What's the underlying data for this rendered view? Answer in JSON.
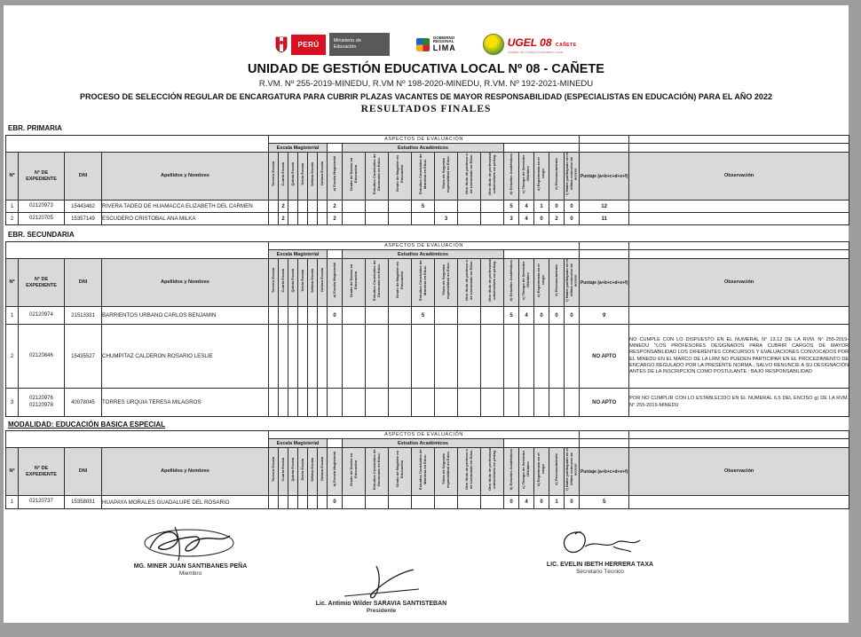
{
  "header": {
    "logos": {
      "minedu": {
        "peru_label": "PERÚ",
        "ministry_label": "Ministerio de Educación"
      },
      "lima": {
        "l1": "GOBIERNO",
        "l2": "REGIONAL",
        "l3": "LIMA"
      },
      "ugel": {
        "title": "UGEL 08",
        "region": "CAÑETE",
        "subtitle": "Unidad de Gestión Educativa Local"
      }
    },
    "title": "UNIDAD DE GESTIÓN EDUCATIVA LOCAL Nº 08 - CAÑETE",
    "subtitle": "R.VM. Nº 255-2019-MINEDU, R.VM Nº 198-2020-MINEDU, R.VM. Nº 192-2021-MINEDU",
    "process": "PROCESO DE SELECCIÓN REGULAR DE ENCARGATURA PARA CUBRIR PLAZAS VACANTES DE MAYOR RESPONSABILIDAD (ESPECIALISTAS EN EDUCACIÓN) PARA EL AÑO 2022",
    "results_title": "RESULTADOS FINALES"
  },
  "table_headers": {
    "aspectos": "ASPECTOS DE EVALUACIÓN",
    "escala_group": "Escala Magisterial",
    "estudios_group": "Estudios Académicos",
    "no": "Nº",
    "expediente": "N° DE EXPEDIENTE",
    "dni": "DNI",
    "nombres": "Apellidos y Nombres",
    "escala_cols": [
      "Tercera Escala",
      "Cuarta Escala",
      "Quinta Escala",
      "Sexta Escala",
      "Sétima Escala",
      "Octava Escala"
    ],
    "a_col": "a) Escala Magisterial",
    "estudios_cols": [
      "Grado de Doctor en Educación",
      "Estudios Concluidos de Doctorado en Educ.",
      "Grado de Magíster en Educación",
      "Estudios Concluidos de Maestría en Educ.",
      "Título de Segunda especialidad en Educ.",
      "Otro título de profesor o de Licenciado en Educ.",
      "Otro título de profesional universitario no pedag.",
      "b) Estudios Académicos"
    ],
    "b_col": "b) Estudios Académicos",
    "c_col": "c) Tiempo de Servicios Oficiales",
    "d_col": "d) Experiencia en el cargo",
    "e_col": "e) Reconocimiento",
    "f_col": "f) Haber participado en el último concurso de acceso",
    "puntaje": "Puntaje (a+b+c+d+e+f)",
    "observacion": "Observación"
  },
  "tables": [
    {
      "section": "EBR. PRIMARIA",
      "rows": [
        {
          "no": "1",
          "expediente": "02120973",
          "dni": "15443482",
          "nombres": "RIVERA TADEO DE HUAMACCA ELIZABETH  DEL CARMEN",
          "escala": [
            "",
            "2",
            "",
            "",
            "",
            ""
          ],
          "a": "2",
          "estudios": [
            "",
            "",
            "",
            "5",
            "",
            "",
            ""
          ],
          "b": "5",
          "c": "4",
          "d": "1",
          "e": "0",
          "f": "0",
          "puntaje": "12",
          "observacion": ""
        },
        {
          "no": "2",
          "expediente": "02120705",
          "dni": "15357149",
          "nombres": "ESCUDERO CRISTOBAL ANA MILKA",
          "escala": [
            "",
            "2",
            "",
            "",
            "",
            ""
          ],
          "a": "2",
          "estudios": [
            "",
            "",
            "",
            "",
            "3",
            "",
            ""
          ],
          "b": "3",
          "c": "4",
          "d": "0",
          "e": "2",
          "f": "0",
          "puntaje": "11",
          "observacion": ""
        }
      ]
    },
    {
      "section": "EBR. SECUNDARIA",
      "rows": [
        {
          "no": "1",
          "expediente": "02120974",
          "dni": "21513331",
          "nombres": "BARRIENTOS URBANO CARLOS BENJAMIN",
          "escala": [
            "",
            "",
            "",
            "",
            "",
            ""
          ],
          "a": "0",
          "estudios": [
            "",
            "",
            "",
            "5",
            "",
            "",
            ""
          ],
          "b": "5",
          "c": "4",
          "d": "0",
          "e": "0",
          "f": "0",
          "puntaje": "9",
          "observacion": ""
        },
        {
          "no": "2",
          "expediente": "02120846",
          "dni": "15435527",
          "nombres": "CHUMPITAZ CALDERON ROSARIO LESLIE",
          "escala": [
            "",
            "",
            "",
            "",
            "",
            ""
          ],
          "a": "",
          "estudios": [
            "",
            "",
            "",
            "",
            "",
            "",
            ""
          ],
          "b": "",
          "c": "",
          "d": "",
          "e": "",
          "f": "",
          "puntaje": "NO APTO",
          "observacion": "NO CUMPLE CON LO DISPUESTO EN EL NUMERAL N° 13.12 DE LA RVM. N° 255-2019-MINEDU \"LOS PROFESORES DESIGNADOS PARA CUBRIR CARGOS DE MAYOR RESPONSABILIDAD LOS DIFERENTES CONCURSOS Y EVALUACIONES CONVOCADOS POR EL MINEDU EN EL MARCO DE LA LRM NO PUEDEN PARTICIPAR EN EL PROCEDIMIENTO DE ENCARGO REGULADO POR LA PRESENTE NORMA., SALVO RENUNCIE A SU DESIGNACIÓN ANTES DE LA INSCRIPCION COMO POSTULANTE : BAJO RESPONSABILIDAD"
        },
        {
          "no": "3",
          "expediente": "02120976\n02120978",
          "dni": "40078045",
          "nombres": "TORRES URQUIA TERESA MILAGROS",
          "escala": [
            "",
            "",
            "",
            "",
            "",
            ""
          ],
          "a": "",
          "estudios": [
            "",
            "",
            "",
            "",
            "",
            "",
            ""
          ],
          "b": "",
          "c": "",
          "d": "",
          "e": "",
          "f": "",
          "puntaje": "NO APTO",
          "observacion": "POR NO CUMPLIR CON LO ESTABLECIDO EN EL NUMERAL 6.5  DEL ENCISO g) DE LA RVM. N° 255-2019-MINEDU"
        }
      ]
    },
    {
      "section": "MODALIDAD: EDUCACIÓN BASICA ESPECIAL",
      "rows": [
        {
          "no": "1",
          "expediente": "02120737",
          "dni": "15358031",
          "nombres": "HUAPAYA MORALES GUADALUPE DEL ROSARIO",
          "escala": [
            "",
            "",
            "",
            "",
            "",
            ""
          ],
          "a": "0",
          "estudios": [
            "",
            "",
            "",
            "",
            "",
            "",
            ""
          ],
          "b": "0",
          "c": "4",
          "d": "0",
          "e": "1",
          "f": "0",
          "puntaje": "5",
          "observacion": ""
        }
      ]
    }
  ],
  "signatures": [
    {
      "name": "MG. MINER JUAN SANTIBANES PEÑA",
      "role": "Miembro"
    },
    {
      "name": "Lic. Antimio Wilder SARAVIA SANTISTEBAN",
      "role": "Presidente"
    },
    {
      "name": "LIC. EVELIN IBETH HERRERA TAXA",
      "role": "Secretario Técnico"
    }
  ]
}
